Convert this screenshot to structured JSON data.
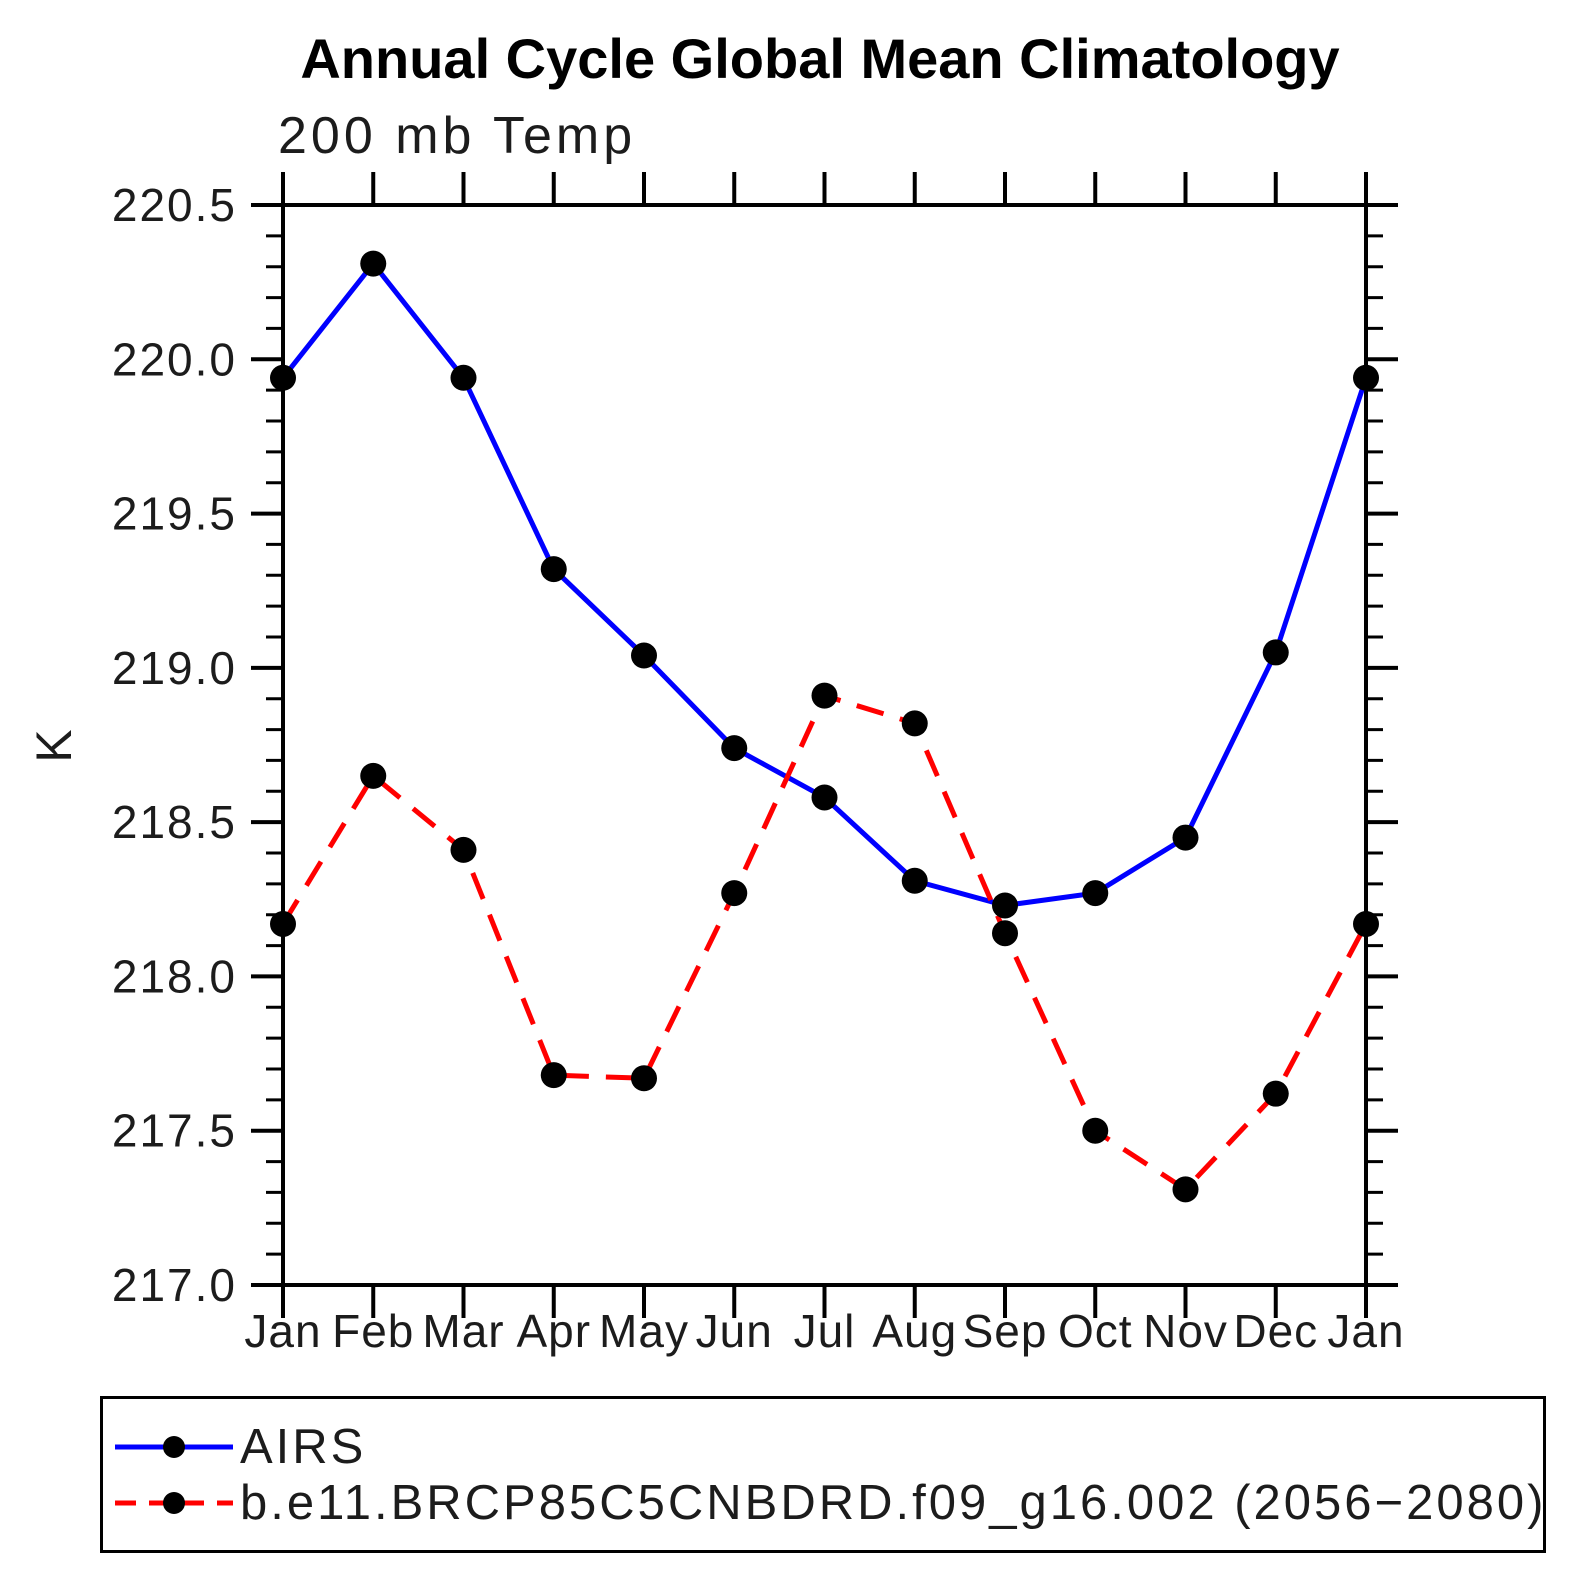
{
  "chart_data": {
    "type": "line",
    "title": "Annual Cycle Global Mean Climatology",
    "subtitle": "200 mb Temp",
    "ylabel": "K",
    "xlabel": "",
    "x_labels": [
      "Jan",
      "Feb",
      "Mar",
      "Apr",
      "May",
      "Jun",
      "Jul",
      "Aug",
      "Sep",
      "Oct",
      "Nov",
      "Dec",
      "Jan"
    ],
    "ylim": [
      217.0,
      220.5
    ],
    "ytick_step": 0.5,
    "ytick_minor_step": 0.1,
    "ytick_labels": [
      "220.5",
      "220.0",
      "219.5",
      "219.0",
      "218.5",
      "218.0",
      "217.5",
      "217.0"
    ],
    "grid": false,
    "legend_position": "bottom",
    "frame_color": "#000000",
    "marker_color": "#000000",
    "series": [
      {
        "name": "AIRS",
        "color": "#0000ff",
        "style": "solid",
        "marker": "circle",
        "values": [
          219.94,
          220.31,
          219.94,
          219.32,
          219.04,
          218.74,
          218.58,
          218.31,
          218.23,
          218.27,
          218.45,
          219.05,
          219.94
        ]
      },
      {
        "name": "b.e11.BRCP85C5CNBDRD.f09_g16.002 (2056−2080)",
        "color": "#ff0000",
        "style": "dashed",
        "marker": "circle",
        "values": [
          218.17,
          218.65,
          218.41,
          217.68,
          217.67,
          218.27,
          218.91,
          218.82,
          218.14,
          217.5,
          217.31,
          217.62,
          218.17
        ]
      }
    ]
  }
}
